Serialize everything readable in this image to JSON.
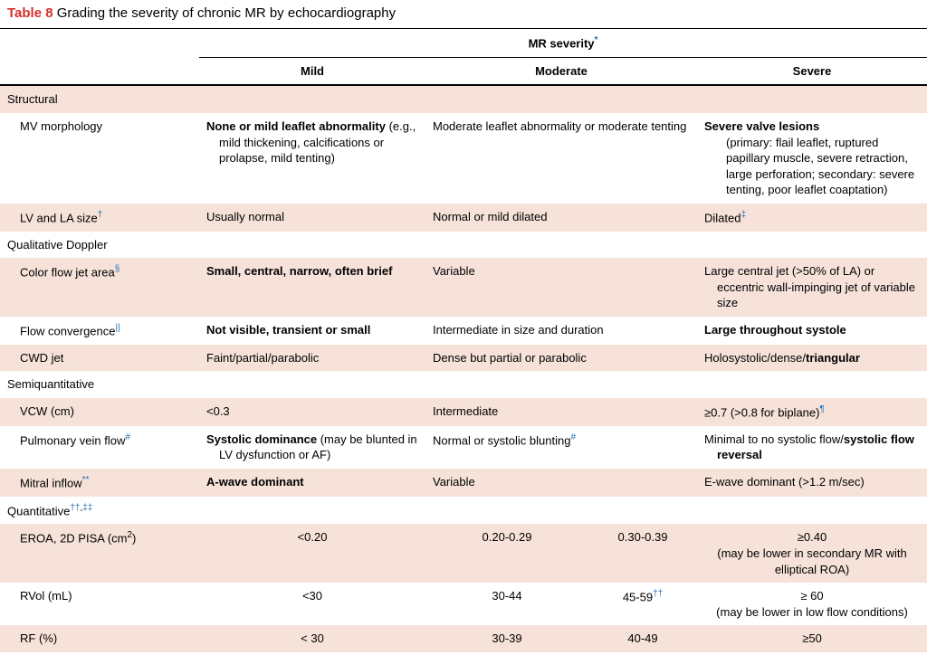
{
  "title_label": "Table 8",
  "title_text": "Grading the severity of chronic MR by echocardiography",
  "span_header": "MR severity",
  "span_header_sup": "*",
  "cols": {
    "mild": "Mild",
    "moderate": "Moderate",
    "severe": "Severe"
  },
  "sections": {
    "structural": "Structural",
    "qualitative": "Qualitative Doppler",
    "semi": "Semiquantitative",
    "quant": "Quantitative",
    "quant_sup1": "††",
    "quant_sup2": "‡‡"
  },
  "rows": {
    "mv": {
      "label": "MV morphology",
      "mild_bold": "None or mild leaflet abnormality",
      "mild_rest": "(e.g., mild thickening, calcifications or prolapse, mild tenting)",
      "mod": "Moderate leaflet abnormality or moderate tenting",
      "sev_bold": "Severe valve lesions",
      "sev_rest": "(primary: flail leaflet, ruptured papillary muscle, severe retraction, large perforation; secondary: severe tenting, poor leaflet coaptation)"
    },
    "lvla": {
      "label": "LV and LA size",
      "label_sup": "†",
      "mild": "Usually normal",
      "mod": "Normal or mild dilated",
      "sev": "Dilated",
      "sev_sup": "‡"
    },
    "cfja": {
      "label": "Color flow jet area",
      "label_sup": "§",
      "mild": "Small, central, narrow, often brief",
      "mod": "Variable",
      "sev": "Large central jet (>50% of LA) or eccentric wall-impinging jet of variable size"
    },
    "flowconv": {
      "label": "Flow convergence",
      "label_sup": "||",
      "mild": "Not visible, transient or small",
      "mod": "Intermediate in size and duration",
      "sev": "Large throughout systole"
    },
    "cwd": {
      "label": "CWD jet",
      "mild": "Faint/partial/parabolic",
      "mod": "Dense but partial or parabolic",
      "sev_pre": "Holosystolic/dense/",
      "sev_bold": "triangular"
    },
    "vcw": {
      "label": "VCW (cm)",
      "mild": "<0.3",
      "mod": "Intermediate",
      "sev": "≥0.7 (>0.8 for biplane)",
      "sev_sup": "¶"
    },
    "pvf": {
      "label": "Pulmonary vein flow",
      "label_sup": "#",
      "mild_bold": "Systolic dominance",
      "mild_rest": " (may be blunted in LV dysfunction or AF)",
      "mod": "Normal or systolic blunting",
      "mod_sup": "#",
      "sev_pre": "Minimal to no systolic flow/",
      "sev_bold": "systolic flow reversal"
    },
    "mi": {
      "label": "Mitral inflow",
      "label_sup": "**",
      "mild": "A-wave dominant",
      "mod": "Variable",
      "sev": "E-wave dominant (>1.2 m/sec)"
    },
    "eroa": {
      "label": "EROA, 2D PISA (cm",
      "label_sup": "2",
      "label_tail": ")",
      "mild": "<0.20",
      "mod1": "0.20-0.29",
      "mod2": "0.30-0.39",
      "sev": "≥0.40",
      "sev_note": "(may be lower in secondary MR with elliptical ROA)"
    },
    "rvol": {
      "label": "RVol (mL)",
      "mild": "<30",
      "mod1": "30-44",
      "mod2": "45-59",
      "mod2_sup": "††",
      "sev": "≥ 60",
      "sev_note": "(may be lower in low flow conditions)"
    },
    "rf": {
      "label": "RF (%)",
      "mild": "< 30",
      "mod1": "30-39",
      "mod2": "40-49",
      "sev": "≥50"
    }
  },
  "colors": {
    "title": "#d6302b",
    "stripe": "#f6e2d9",
    "sup": "#1f6fb2",
    "text": "#000000",
    "bg": "#ffffff"
  },
  "fonts": {
    "base_pt": 13,
    "title_pt": 15,
    "sup_pt": 10,
    "family": "Arial"
  }
}
